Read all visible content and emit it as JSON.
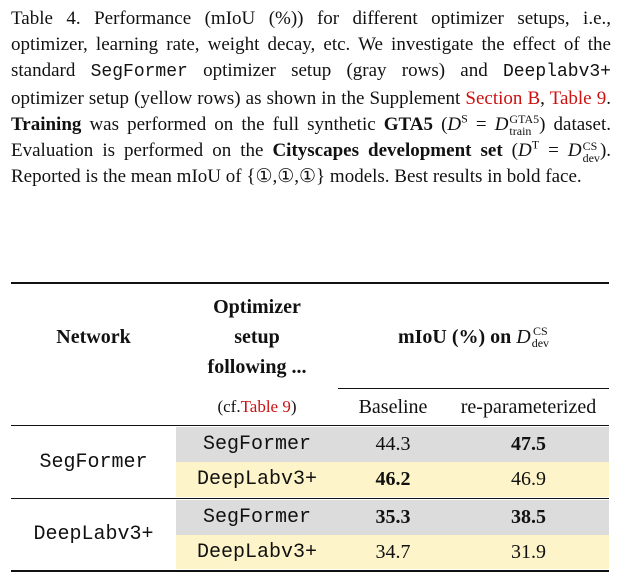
{
  "caption": {
    "part1": "Table 4. Performance (mIoU (%)) for different optimizer setups, i.e., optimizer, learning rate, weight decay, etc. We investigate the effect of the standard ",
    "segformer": "SegFormer",
    "part2": " optimizer setup (gray rows) and ",
    "deeplab": "Deeplabv3+",
    "part3": " optimizer setup (yellow rows) as shown in the Supplement ",
    "ref_section": "Section B",
    "sep": ", ",
    "ref_table": "Table 9",
    "part4": ". ",
    "training": "Training",
    "part5": " was performed on the full synthetic ",
    "gta5": "GTA5",
    "part6": " (",
    "ds_D": "D",
    "ds_sup": "S",
    "ds_eq": " = ",
    "ds_D2": "D",
    "ds_sup2": "GTA5",
    "ds_sub2": "train",
    "part7": ") dataset. Evaluation is performed on the ",
    "cityscapes": "Cityscapes development set",
    "part8": " (",
    "dt_D": "D",
    "dt_sup": "T",
    "dt_eq": " = ",
    "dt_D2": "D",
    "dt_sup2": "CS",
    "dt_sub2": "dev",
    "part9": "). Reported is the mean mIoU of {①,①,①} models. Best results in bold face."
  },
  "table": {
    "headers": {
      "network": "Network",
      "optimizer_line1": "Optimizer",
      "optimizer_line2": "setup",
      "optimizer_line3": "following ...",
      "miou_prefix": "mIoU (%) on ",
      "miou_D": "D",
      "miou_sup": "CS",
      "miou_sub": "dev",
      "cf_prefix": "(cf. ",
      "cf_ref": "Table 9",
      "cf_suffix": ")",
      "baseline": "Baseline",
      "reparam": "re-parameterized"
    },
    "groups": [
      {
        "network": "SegFormer",
        "rows": [
          {
            "setup": "SegFormer",
            "baseline": "44.3",
            "reparam": "47.5",
            "shade": "gray"
          },
          {
            "setup": "DeepLabv3+",
            "baseline": "46.2",
            "reparam": "46.9",
            "shade": "yellow"
          }
        ]
      },
      {
        "network": "DeepLabv3+",
        "rows": [
          {
            "setup": "SegFormer",
            "baseline": "35.3",
            "reparam": "38.5",
            "shade": "gray"
          },
          {
            "setup": "DeepLabv3+",
            "baseline": "34.7",
            "reparam": "31.9",
            "shade": "yellow"
          }
        ]
      }
    ],
    "colors": {
      "gray": "#dcdcdc",
      "yellow": "#fdf5c9",
      "ref": "#cc1111"
    }
  }
}
